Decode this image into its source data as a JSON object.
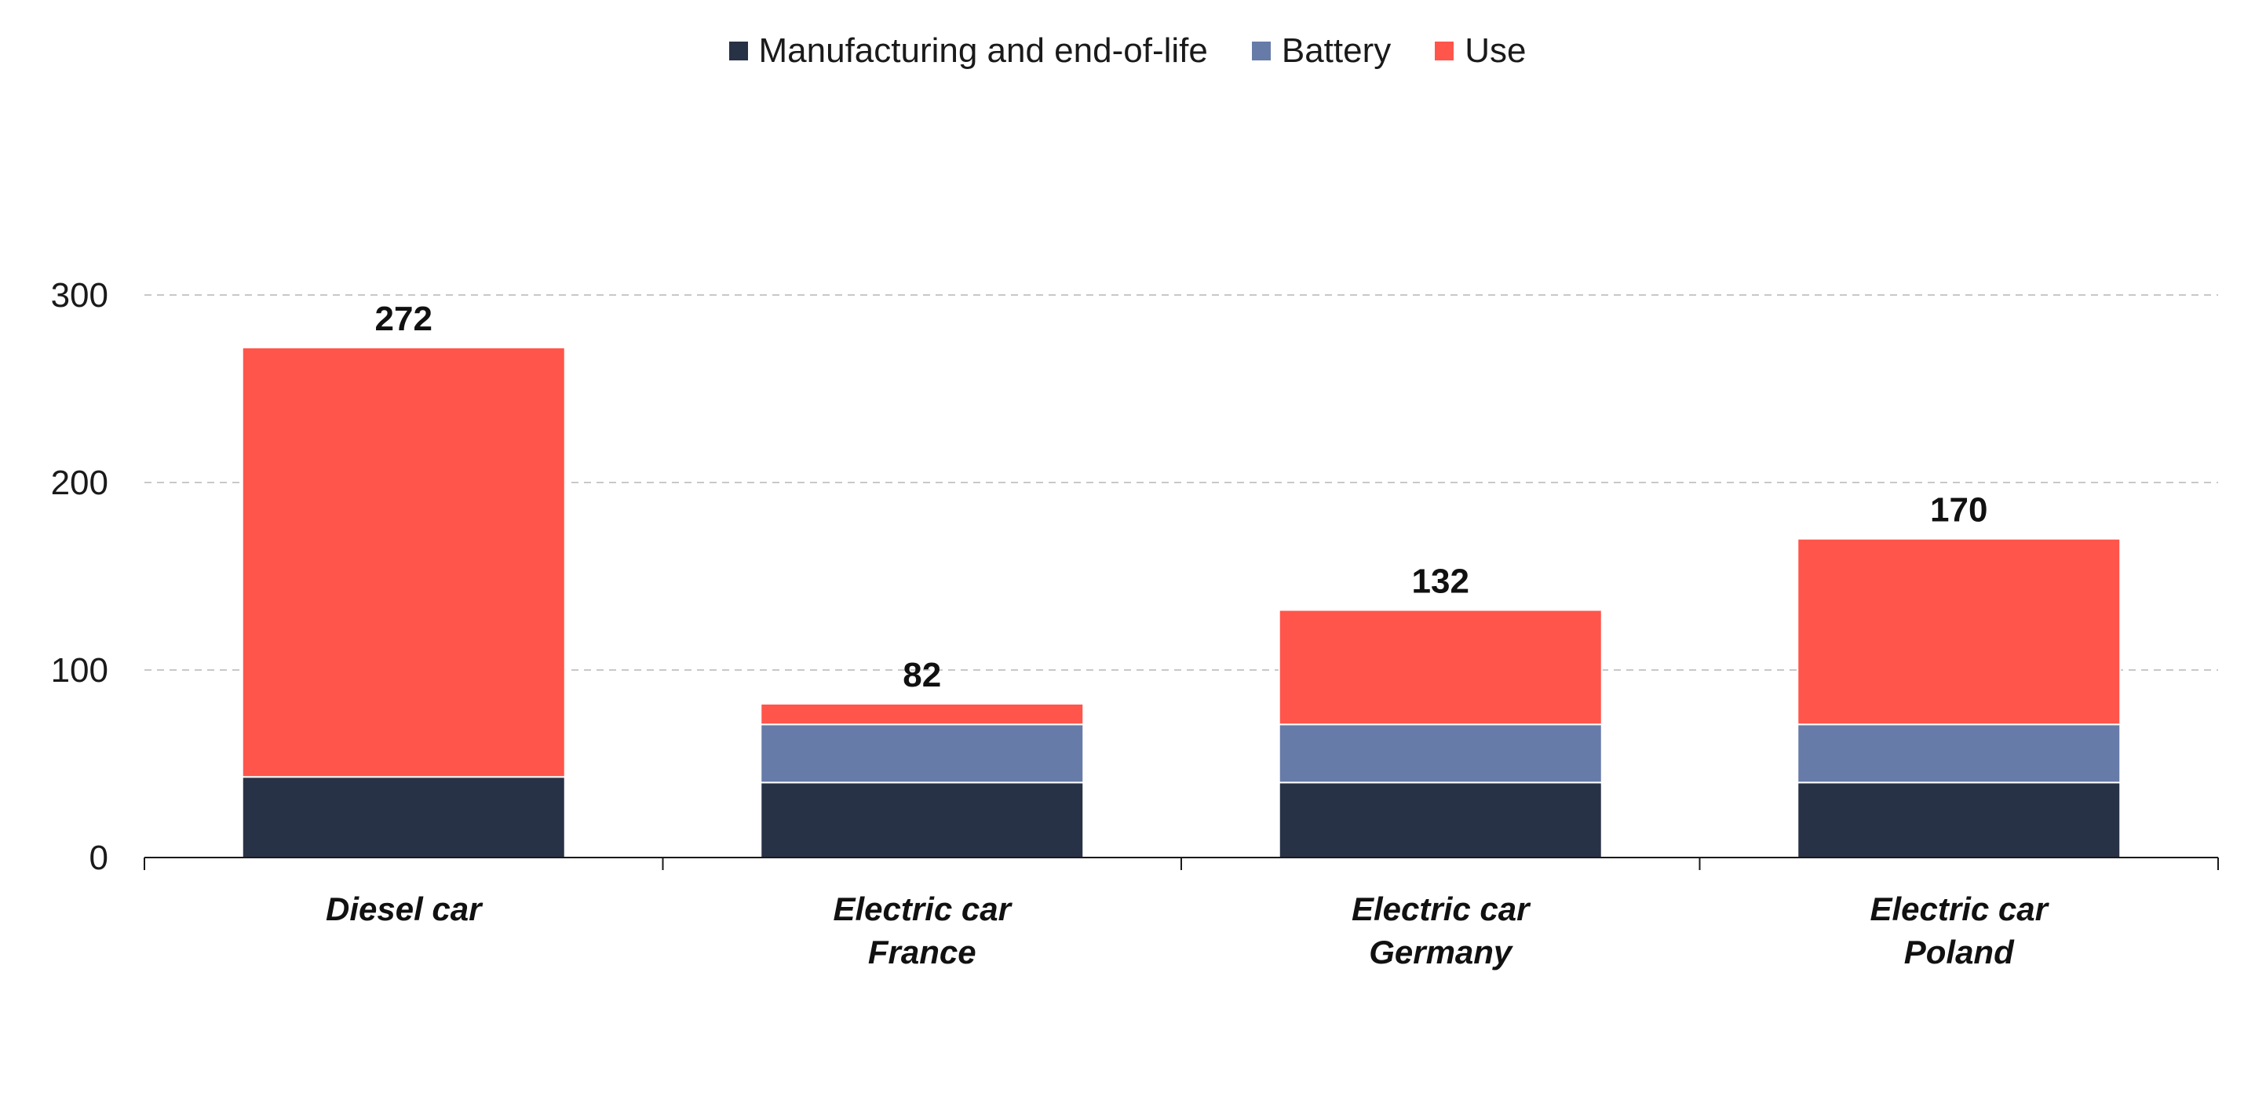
{
  "chart_data": {
    "type": "bar",
    "stacked": true,
    "categories": [
      [
        "Diesel car"
      ],
      [
        "Electric car",
        "France"
      ],
      [
        "Electric car",
        "Germany"
      ],
      [
        "Electric car",
        "Poland"
      ]
    ],
    "series": [
      {
        "name": "Manufacturing and end-of-life",
        "color": "#283246",
        "values": [
          43,
          40,
          40,
          40
        ]
      },
      {
        "name": "Battery",
        "color": "#677BA8",
        "values": [
          0,
          31,
          31,
          31
        ]
      },
      {
        "name": "Use",
        "color": "#FF554B",
        "values": [
          229,
          11,
          61,
          99
        ]
      }
    ],
    "totals": [
      "272",
      "82",
      "132",
      "170"
    ],
    "yticks": [
      "0",
      "100",
      "200",
      "300"
    ],
    "ylim": [
      0,
      300
    ],
    "grid": true,
    "legend_position": "top-center"
  }
}
